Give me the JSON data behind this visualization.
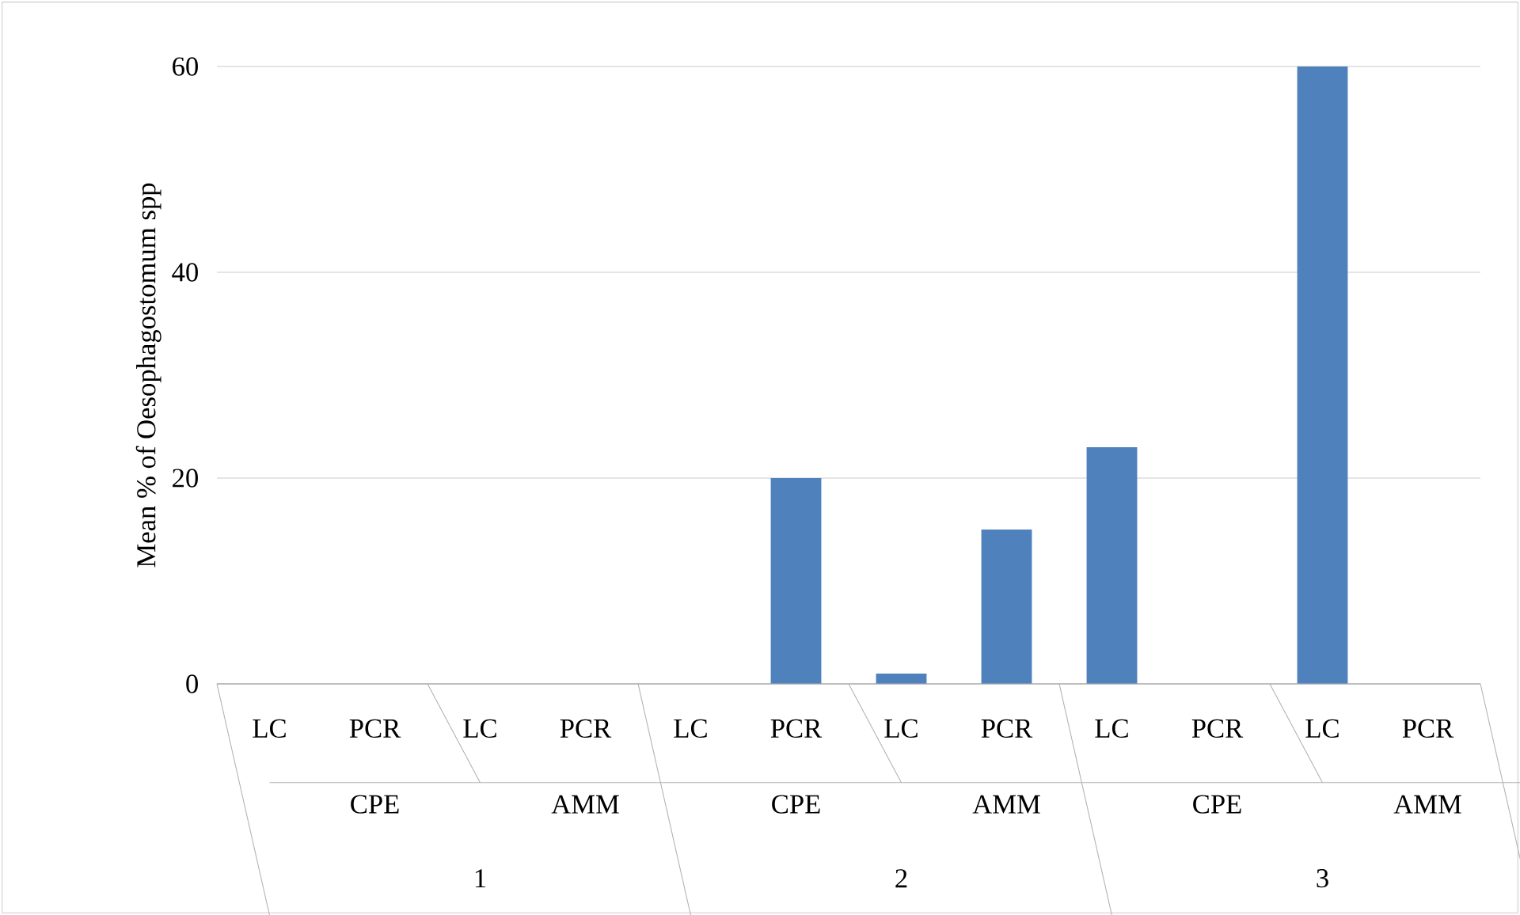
{
  "chart_data": {
    "type": "bar",
    "ylabel": "Mean % of Oesophagostomum spp",
    "categories": [
      "LC",
      "PCR",
      "LC",
      "PCR",
      "LC",
      "PCR",
      "LC",
      "PCR",
      "LC",
      "PCR",
      "LC",
      "PCR"
    ],
    "values": [
      0,
      0,
      0,
      0,
      0,
      20,
      1,
      15,
      23,
      0,
      60,
      0
    ],
    "color": "#4f81bd",
    "ylim": [
      0,
      60
    ],
    "yticks": [
      0,
      20,
      40,
      60
    ],
    "grid": "y",
    "annotations": [
      "CPE",
      "AMM",
      "CPE",
      "AMM",
      "CPE",
      "AMM",
      "1",
      "2",
      "3"
    ]
  }
}
